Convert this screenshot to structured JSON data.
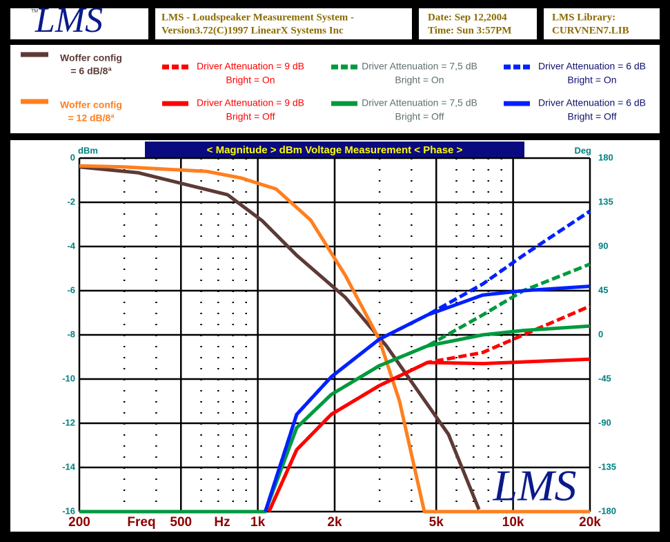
{
  "logo": "LMS",
  "logo_tm": "TM",
  "header": {
    "title_lines": [
      "LMS - Loudspeaker Measurement System -",
      "Version3.72(C)1997 LinearX Systems Inc"
    ],
    "date": "Date: Sep 12,2004",
    "time": "Time: Sun  3:57PM",
    "library_label": "LMS Library:",
    "library": "CURVNEN7.LIB"
  },
  "chart_data": {
    "type": "line",
    "title": "< Magnitude >   dBm Voltage Measurement    < Phase >",
    "ylabel": "dBm",
    "y2label": "Deg",
    "xlabel_parts": [
      "Freq",
      "Hz"
    ],
    "watermark": "LMS",
    "log_x": true,
    "grid": true,
    "xlim": [
      200,
      20000
    ],
    "xticks": [
      200,
      500,
      {
        "value": 1000,
        "label": "1k"
      },
      {
        "value": 2000,
        "label": "2k"
      },
      {
        "value": 5000,
        "label": "5k"
      },
      {
        "value": 10000,
        "label": "10k"
      },
      {
        "value": 20000,
        "label": "20k"
      }
    ],
    "xminor_ticks": [
      300,
      400,
      600,
      700,
      800,
      900,
      3000,
      4000,
      6000,
      7000,
      8000,
      9000
    ],
    "ylim": [
      -16,
      0
    ],
    "yticks": [
      -16,
      -14,
      -12,
      -10,
      -8,
      -6,
      -4,
      -2,
      0
    ],
    "y2lim": [
      -180,
      180
    ],
    "y2ticks": [
      -180,
      -135,
      -90,
      -45,
      0,
      45,
      90,
      135,
      180
    ],
    "series": [
      {
        "name": [
          "Woffer config",
          "= 6 dB/8ª"
        ],
        "color": "#5c3a36",
        "dashed": false,
        "x": [
          200,
          339,
          762,
          1042,
          1420,
          2200,
          3190,
          4100,
          5580,
          7350
        ],
        "values": [
          -0.4,
          -0.66,
          -1.66,
          -2.84,
          -4.4,
          -6.3,
          -8.5,
          -10.3,
          -12.5,
          -15.9
        ]
      },
      {
        "name": [
          "Woffer config",
          "= 12 dB/8ª"
        ],
        "color": "#ff7f1e",
        "dashed": false,
        "x": [
          200,
          300,
          630,
          860,
          1180,
          1610,
          2200,
          2990,
          3590,
          4490,
          20000
        ],
        "values": [
          -0.35,
          -0.4,
          -0.6,
          -0.9,
          -1.4,
          -2.8,
          -5.3,
          -8.2,
          -11,
          -16,
          -16
        ]
      },
      {
        "name": [
          "Driver Attenuation = 9 dB",
          "Bright = On"
        ],
        "color": "#ff0000",
        "dashed": true,
        "x": [
          1106,
          1420,
          1940,
          2990,
          4620,
          7600,
          10970,
          20000
        ],
        "values": [
          -16,
          -13.2,
          -11.6,
          -10.3,
          -9.25,
          -8.8,
          -8,
          -6.7
        ]
      },
      {
        "name": [
          "Driver Attenuation = 7,5 dB",
          "Bright = On"
        ],
        "color": "#009a3e",
        "dashed": true,
        "x": [
          1070,
          1420,
          1940,
          2990,
          4620,
          7600,
          10970,
          20000
        ],
        "values": [
          -16,
          -12.2,
          -10.7,
          -9.4,
          -8.5,
          -7.1,
          -6,
          -4.8
        ]
      },
      {
        "name": [
          "Driver Attenuation = 6 dB",
          "Bright = On"
        ],
        "color": "#0020ff",
        "dashed": true,
        "x": [
          1070,
          1420,
          1940,
          2990,
          4620,
          7600,
          10970,
          20000
        ],
        "values": [
          -16,
          -11.6,
          -9.9,
          -8.2,
          -7.1,
          -5.7,
          -4.4,
          -2.4
        ]
      },
      {
        "name": [
          "Driver Attenuation = 9 dB",
          "Bright = Off"
        ],
        "color": "#ff0000",
        "dashed": false,
        "x": [
          1106,
          1420,
          1940,
          2990,
          4620,
          7600,
          20000
        ],
        "values": [
          -16,
          -13.2,
          -11.6,
          -10.3,
          -9.25,
          -9.3,
          -9.1
        ]
      },
      {
        "name": [
          "Driver Attenuation = 7,5 dB",
          "Bright = Off"
        ],
        "color": "#009a3e",
        "dashed": false,
        "x": [
          200,
          1070,
          1420,
          1940,
          2990,
          4620,
          7600,
          10970,
          20000
        ],
        "values": [
          -16,
          -16,
          -12.2,
          -10.7,
          -9.4,
          -8.5,
          -8,
          -7.8,
          -7.6
        ]
      },
      {
        "name": [
          "Driver Attenuation = 6 dB",
          "Bright = Off"
        ],
        "color": "#0020ff",
        "dashed": false,
        "x": [
          1070,
          1420,
          1940,
          2990,
          4620,
          7600,
          10970,
          20000
        ],
        "values": [
          -16,
          -11.6,
          -9.9,
          -8.2,
          -7.1,
          -6.2,
          -6,
          -5.8
        ]
      }
    ]
  }
}
